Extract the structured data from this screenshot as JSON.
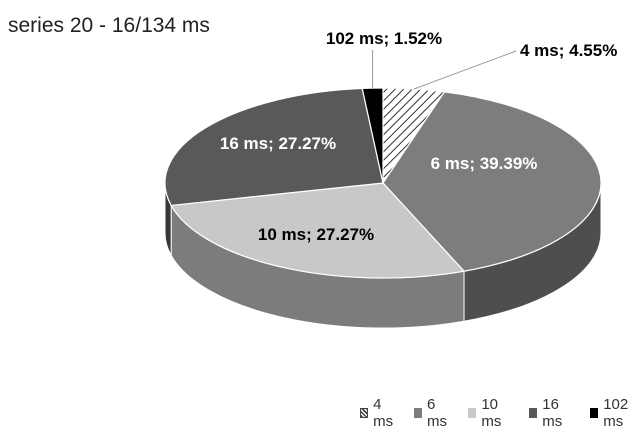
{
  "title": "series 20 - 16/134 ms",
  "chart_data": {
    "type": "pie",
    "title": "series 20 - 16/134 ms",
    "three_d": true,
    "legend_position": "bottom",
    "slices": [
      {
        "name": "4 ms",
        "percent": 4.55,
        "label": "4 ms; 4.55%",
        "color": "#ffffff",
        "pattern": "hatched"
      },
      {
        "name": "6 ms",
        "percent": 39.39,
        "label": "6 ms; 39.39%",
        "color": "#7d7d7d"
      },
      {
        "name": "10 ms",
        "percent": 27.27,
        "label": "10 ms; 27.27%",
        "color": "#c8c8c8"
      },
      {
        "name": "16 ms",
        "percent": 27.27,
        "label": "16 ms; 27.27%",
        "color": "#595959"
      },
      {
        "name": "102 ms",
        "percent": 1.52,
        "label": "102 ms; 1.52%",
        "color": "#000000"
      }
    ]
  }
}
